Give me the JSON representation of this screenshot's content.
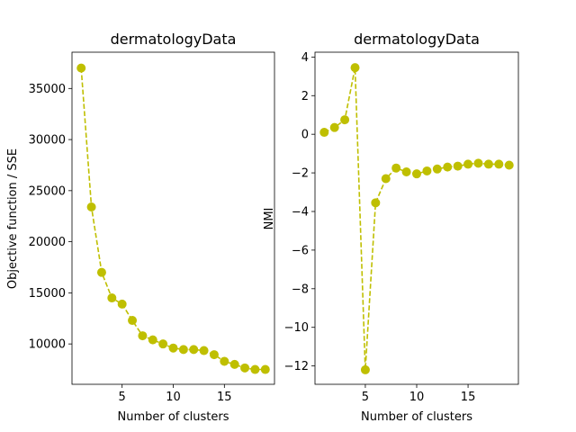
{
  "chart_data": [
    {
      "type": "line",
      "title": "dermatologyData",
      "xlabel": "Number of clusters",
      "ylabel": "Objective function / SSE",
      "xlim": [
        0.1,
        19.9
      ],
      "ylim": [
        6050,
        38550
      ],
      "xticks": [
        5,
        10,
        15
      ],
      "yticks": [
        10000,
        15000,
        20000,
        25000,
        30000,
        35000
      ],
      "color": "#bfbf00",
      "style": "dashed line with circle markers",
      "series": [
        {
          "x": [
            1,
            2,
            3,
            4,
            5,
            6,
            7,
            8,
            9,
            10,
            11,
            12,
            13,
            14,
            15,
            16,
            17,
            18,
            19
          ],
          "y": [
            37000,
            23400,
            17000,
            14500,
            13900,
            12300,
            10800,
            10400,
            10000,
            9600,
            9450,
            9450,
            9350,
            8950,
            8300,
            8000,
            7650,
            7500,
            7500
          ]
        }
      ]
    },
    {
      "type": "line",
      "title": "dermatologyData",
      "xlabel": "Number of clusters",
      "ylabel": "NMI",
      "xlim": [
        0.1,
        19.9
      ],
      "ylim": [
        -12.95,
        4.25
      ],
      "xticks": [
        5,
        10,
        15
      ],
      "yticks": [
        4,
        2,
        0,
        -2,
        -4,
        -6,
        -8,
        -10,
        -12
      ],
      "color": "#bfbf00",
      "style": "dashed line with circle markers",
      "series": [
        {
          "x": [
            1,
            2,
            3,
            4,
            5,
            6,
            7,
            8,
            9,
            10,
            11,
            12,
            13,
            14,
            15,
            16,
            17,
            18,
            19
          ],
          "y": [
            0.1,
            0.35,
            0.75,
            3.45,
            -12.2,
            -3.55,
            -2.3,
            -1.75,
            -1.95,
            -2.05,
            -1.9,
            -1.8,
            -1.7,
            -1.65,
            -1.55,
            -1.5,
            -1.55,
            -1.55,
            -1.6
          ]
        }
      ]
    }
  ]
}
